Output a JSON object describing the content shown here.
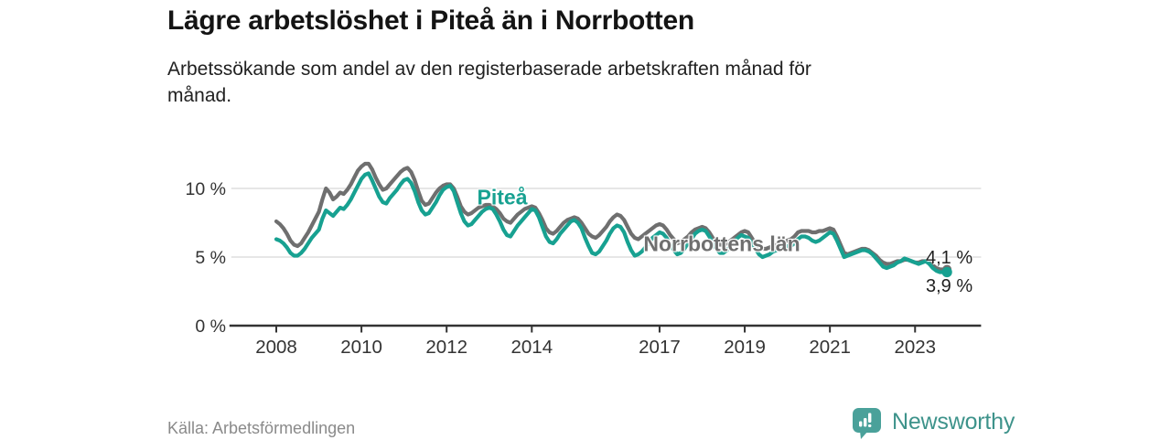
{
  "chart_data": {
    "type": "line",
    "title": "Lägre arbetslöshet i Piteå än i Norrbotten",
    "subtitle_lines": [
      "Arbetssökande som andel av den registerbaserade arbetskraften månad för",
      "månad."
    ],
    "unit": "%",
    "x_start_year": 2008,
    "x_resolution": "monthly",
    "x_end": "2023-10",
    "xlim_years": [
      2006.9,
      2024.55
    ],
    "ylim": [
      0,
      13.3
    ],
    "grid": "horizontal",
    "legend_position": "inline-labels",
    "x_ticks": [
      2008,
      2010,
      2012,
      2014,
      2017,
      2019,
      2021,
      2023
    ],
    "y_ticks": [
      {
        "v": 0,
        "label": "0 %"
      },
      {
        "v": 5,
        "label": "5 %"
      },
      {
        "v": 10,
        "label": "10 %"
      }
    ],
    "series": [
      {
        "name": "Norrbottens län",
        "color": "#6f6f6f",
        "end_label": "4,1 %",
        "end_value": 4.1,
        "values": [
          7.6,
          7.4,
          7.1,
          6.7,
          6.2,
          5.9,
          5.8,
          6.0,
          6.4,
          6.8,
          7.3,
          7.8,
          8.3,
          9.2,
          10.0,
          9.7,
          9.2,
          9.4,
          9.7,
          9.6,
          9.9,
          10.3,
          10.8,
          11.3,
          11.6,
          11.8,
          11.8,
          11.4,
          10.8,
          10.3,
          9.9,
          10.0,
          10.3,
          10.6,
          10.9,
          11.2,
          11.4,
          11.5,
          11.2,
          10.6,
          9.8,
          9.1,
          8.8,
          8.9,
          9.3,
          9.7,
          10.0,
          10.2,
          10.3,
          10.3,
          10.0,
          9.4,
          8.7,
          8.3,
          8.1,
          8.2,
          8.4,
          8.6,
          8.7,
          8.8,
          8.8,
          8.7,
          8.5,
          8.2,
          7.8,
          7.6,
          7.5,
          7.8,
          8.1,
          8.3,
          8.5,
          8.6,
          8.7,
          8.6,
          8.2,
          7.7,
          7.1,
          6.8,
          6.7,
          6.9,
          7.2,
          7.5,
          7.7,
          7.8,
          7.9,
          7.8,
          7.5,
          7.1,
          6.7,
          6.5,
          6.4,
          6.6,
          6.9,
          7.2,
          7.6,
          7.9,
          8.1,
          8.0,
          7.7,
          7.2,
          6.7,
          6.4,
          6.3,
          6.5,
          6.7,
          6.9,
          7.1,
          7.3,
          7.4,
          7.3,
          7.0,
          6.6,
          6.3,
          6.0,
          6.1,
          6.3,
          6.5,
          6.8,
          7.0,
          7.1,
          7.2,
          7.1,
          6.8,
          6.4,
          6.1,
          5.9,
          5.9,
          6.0,
          6.2,
          6.4,
          6.6,
          6.8,
          6.9,
          6.8,
          6.4,
          6.0,
          5.7,
          5.6,
          5.6,
          5.7,
          5.8,
          5.9,
          6.0,
          6.1,
          6.2,
          6.3,
          6.5,
          6.8,
          6.9,
          6.9,
          6.9,
          6.8,
          6.8,
          6.9,
          6.9,
          7.0,
          7.1,
          7.0,
          6.5,
          5.9,
          5.3,
          5.2,
          5.3,
          5.4,
          5.5,
          5.6,
          5.6,
          5.5,
          5.3,
          5.1,
          4.8,
          4.6,
          4.5,
          4.5,
          4.6,
          4.7,
          4.7,
          4.8,
          4.8,
          4.7,
          4.6,
          4.6,
          4.7,
          4.7,
          4.6,
          4.4,
          4.2,
          4.1,
          4.1,
          4.1
        ]
      },
      {
        "name": "Piteå",
        "color": "#17a191",
        "end_label": "3,9 %",
        "end_value": 3.9,
        "values": [
          6.3,
          6.2,
          6.0,
          5.7,
          5.3,
          5.1,
          5.1,
          5.3,
          5.6,
          6.0,
          6.4,
          6.7,
          7.0,
          7.8,
          8.4,
          8.2,
          8.0,
          8.3,
          8.6,
          8.5,
          8.8,
          9.2,
          9.7,
          10.2,
          10.7,
          11.0,
          11.1,
          10.6,
          10.0,
          9.4,
          9.0,
          8.9,
          9.3,
          9.6,
          9.9,
          10.3,
          10.6,
          10.7,
          10.4,
          9.8,
          9.0,
          8.4,
          8.1,
          8.2,
          8.6,
          9.0,
          9.5,
          9.9,
          10.1,
          10.2,
          9.8,
          9.0,
          8.2,
          7.6,
          7.3,
          7.4,
          7.7,
          8.0,
          8.3,
          8.5,
          8.6,
          8.5,
          8.1,
          7.6,
          7.0,
          6.6,
          6.5,
          6.9,
          7.3,
          7.6,
          7.9,
          8.2,
          8.5,
          8.4,
          7.9,
          7.2,
          6.5,
          6.1,
          6.0,
          6.3,
          6.7,
          7.0,
          7.3,
          7.6,
          7.7,
          7.5,
          7.1,
          6.4,
          5.8,
          5.3,
          5.2,
          5.4,
          5.8,
          6.2,
          6.7,
          7.1,
          7.3,
          7.2,
          6.8,
          6.1,
          5.5,
          5.1,
          5.2,
          5.4,
          5.7,
          6.0,
          6.4,
          6.6,
          6.8,
          6.7,
          6.4,
          5.9,
          5.5,
          5.2,
          5.3,
          5.6,
          6.0,
          6.3,
          6.7,
          6.9,
          7.0,
          6.9,
          6.5,
          6.0,
          5.6,
          5.3,
          5.3,
          5.5,
          5.8,
          6.1,
          6.4,
          6.6,
          6.5,
          6.4,
          6.0,
          5.6,
          5.2,
          5.0,
          5.1,
          5.2,
          5.4,
          5.5,
          5.6,
          5.7,
          5.8,
          5.8,
          6.0,
          6.3,
          6.5,
          6.5,
          6.4,
          6.2,
          6.1,
          6.2,
          6.4,
          6.6,
          6.8,
          6.7,
          6.2,
          5.6,
          5.0,
          5.1,
          5.2,
          5.3,
          5.4,
          5.5,
          5.5,
          5.4,
          5.2,
          4.9,
          4.6,
          4.3,
          4.2,
          4.3,
          4.4,
          4.6,
          4.7,
          4.9,
          4.8,
          4.7,
          4.6,
          4.5,
          4.6,
          4.7,
          4.5,
          4.2,
          4.0,
          3.9,
          3.9,
          3.9
        ]
      }
    ],
    "axis_colors": {
      "grid": "#d8d8d8",
      "axis_line": "#333333",
      "tick_label": "#333333"
    }
  },
  "footer": {
    "source": "Källa: Arbetsförmedlingen",
    "logo_text": "Newsworthy"
  }
}
